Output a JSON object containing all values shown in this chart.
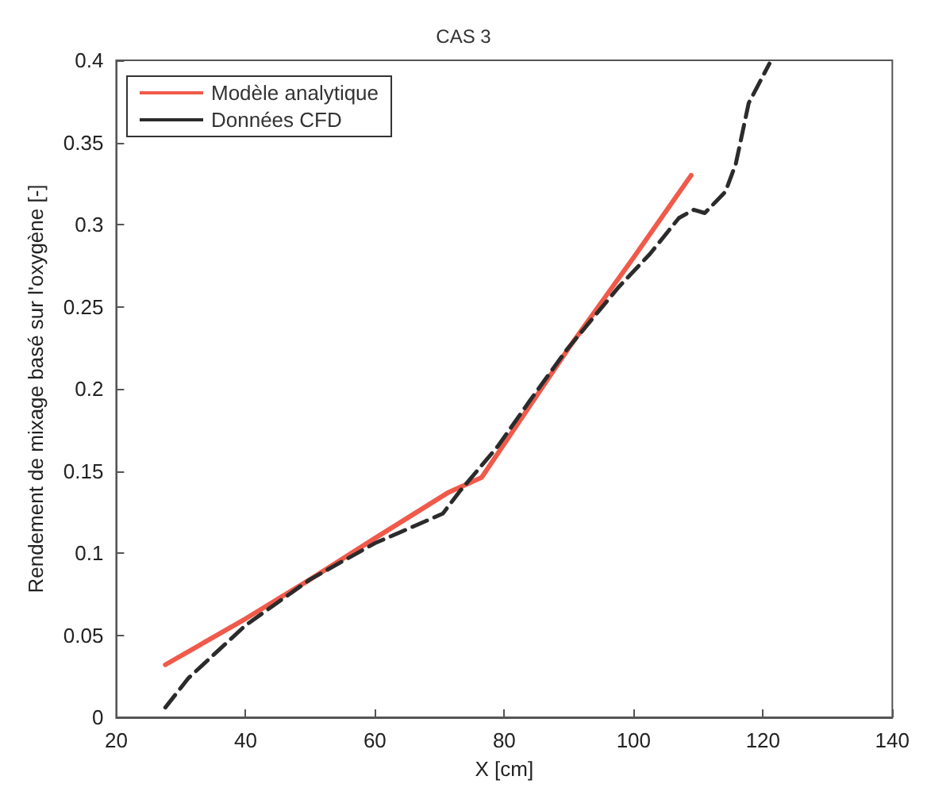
{
  "chart_data": {
    "type": "line",
    "title": "CAS 3",
    "xlabel": "X [cm]",
    "ylabel": "Rendement de mixage basé sur l'oxygène [-]",
    "xlim": [
      20,
      140
    ],
    "xticks": [
      20,
      40,
      60,
      80,
      100,
      120,
      140
    ],
    "ylim": [
      0,
      0.4
    ],
    "yticks": [
      0,
      0.05,
      0.1,
      0.15,
      0.2,
      0.25,
      0.3,
      0.35,
      0.4
    ],
    "grid": false,
    "legend": "top left",
    "marker": "none",
    "series": [
      {
        "name": "Modèle analytique",
        "color": "#f05a4a",
        "line_style": "solid",
        "x": [
          27.6,
          40,
          50,
          60,
          71.4,
          76.5,
          90,
          100,
          108.9
        ],
        "values": [
          0.032,
          0.06,
          0.084,
          0.109,
          0.137,
          0.146,
          0.225,
          0.28,
          0.33
        ]
      },
      {
        "name": "Données CFD",
        "color": "#2b2b2b",
        "line_style": "dashed",
        "x": [
          27.6,
          31.2,
          40,
          50,
          60,
          70.5,
          73,
          79,
          84,
          89.7,
          97.7,
          102.5,
          107,
          109.3,
          111,
          114.2,
          115.8,
          117.8,
          121
        ],
        "values": [
          0.006,
          0.024,
          0.056,
          0.084,
          0.106,
          0.124,
          0.137,
          0.165,
          0.193,
          0.224,
          0.262,
          0.282,
          0.304,
          0.309,
          0.307,
          0.32,
          0.337,
          0.374,
          0.398
        ]
      }
    ]
  }
}
